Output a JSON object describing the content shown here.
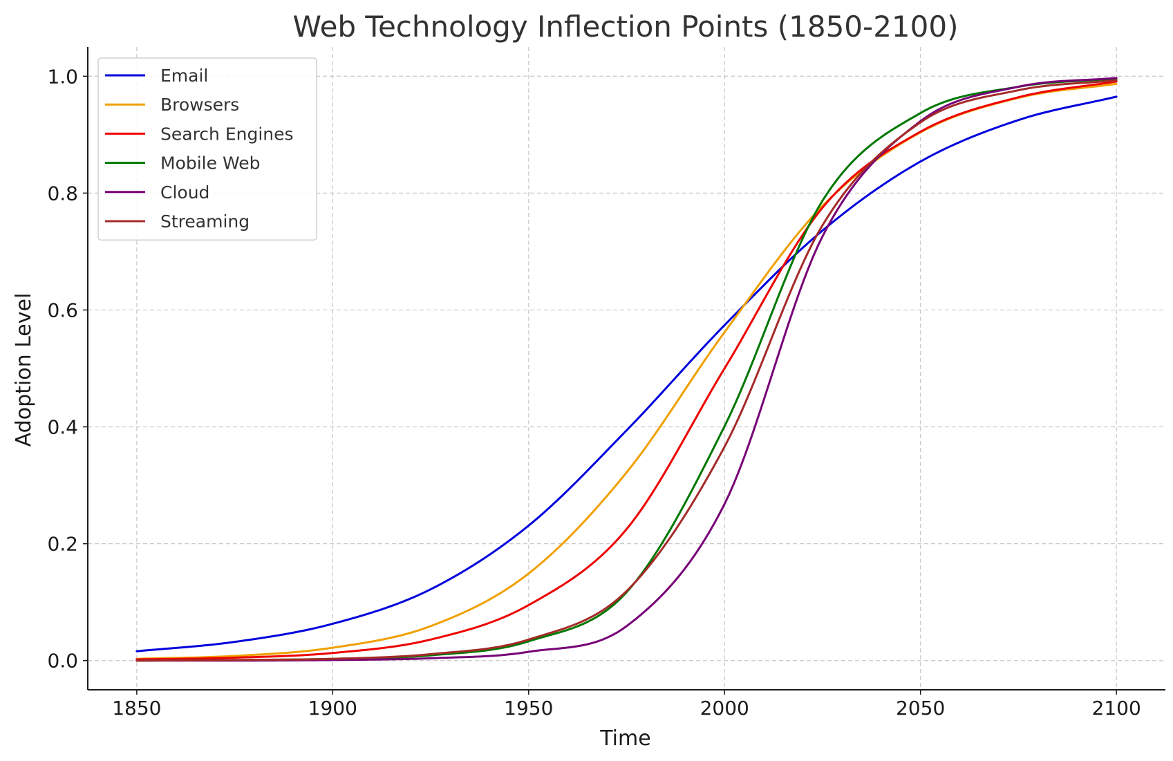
{
  "chart_data": {
    "type": "line",
    "title": "Web Technology Inflection Points (1850-2100)",
    "xlabel": "Time",
    "ylabel": "Adoption Level",
    "xlim": [
      1837.5,
      2112.5
    ],
    "ylim": [
      -0.05,
      1.05
    ],
    "xticks": [
      1850,
      1900,
      1950,
      2000,
      2050,
      2100
    ],
    "yticks": [
      0.0,
      0.2,
      0.4,
      0.6,
      0.8,
      1.0
    ],
    "xtick_labels": [
      "1850",
      "1900",
      "1950",
      "2000",
      "2050",
      "2100"
    ],
    "ytick_labels": [
      "0.0",
      "0.2",
      "0.4",
      "0.6",
      "0.8",
      "1.0"
    ],
    "grid": true,
    "legend_position": "top-left",
    "series": [
      {
        "name": "Email",
        "color": "#0000dd",
        "x": [
          1850,
          1875,
          1900,
          1925,
          1950,
          1975,
          2000,
          2025,
          2050,
          2075,
          2100
        ],
        "y": [
          0.016,
          0.032,
          0.063,
          0.122,
          0.231,
          0.394,
          0.574,
          0.736,
          0.854,
          0.925,
          0.965
        ]
      },
      {
        "name": "Browsers",
        "color": "#f0a000",
        "x": [
          1850,
          1875,
          1900,
          1925,
          1950,
          1975,
          2000,
          2025,
          2050,
          2075,
          2100
        ],
        "y": [
          0.003,
          0.008,
          0.022,
          0.059,
          0.149,
          0.322,
          0.562,
          0.778,
          0.904,
          0.963,
          0.987
        ]
      },
      {
        "name": "Search Engines",
        "color": "#ee0000",
        "x": [
          1850,
          1875,
          1900,
          1925,
          1950,
          1975,
          2000,
          2025,
          2050,
          2075,
          2100
        ],
        "y": [
          0.002,
          0.005,
          0.013,
          0.036,
          0.095,
          0.225,
          0.5,
          0.775,
          0.905,
          0.964,
          0.991
        ]
      },
      {
        "name": "Mobile Web",
        "color": "#007700",
        "x": [
          1850,
          1875,
          1900,
          1925,
          1950,
          1975,
          2000,
          2025,
          2050,
          2075,
          2100
        ],
        "y": [
          0.0,
          0.001,
          0.003,
          0.009,
          0.033,
          0.117,
          0.401,
          0.787,
          0.937,
          0.982,
          0.996
        ]
      },
      {
        "name": "Cloud",
        "color": "#770077",
        "x": [
          1850,
          1875,
          1900,
          1925,
          1950,
          1975,
          2000,
          2025,
          2050,
          2075,
          2100
        ],
        "y": [
          0.0,
          0.0,
          0.001,
          0.004,
          0.015,
          0.059,
          0.268,
          0.726,
          0.923,
          0.982,
          0.997
        ]
      },
      {
        "name": "Streaming",
        "color": "#a52a2a",
        "x": [
          1850,
          1875,
          1900,
          1925,
          1950,
          1975,
          2000,
          2025,
          2050,
          2075,
          2100
        ],
        "y": [
          0.0,
          0.001,
          0.003,
          0.011,
          0.036,
          0.119,
          0.366,
          0.745,
          0.921,
          0.976,
          0.993
        ]
      }
    ]
  }
}
